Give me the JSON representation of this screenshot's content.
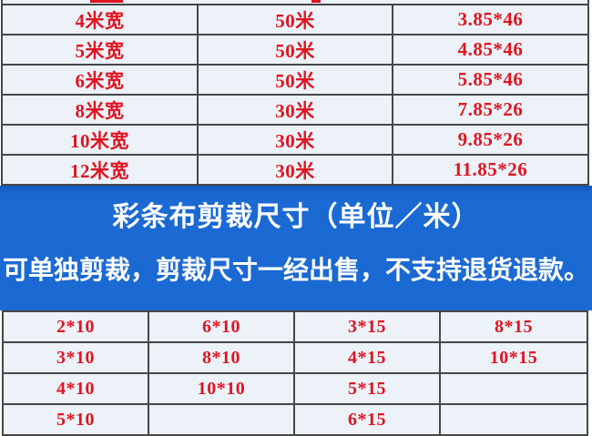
{
  "colors": {
    "cell_background": "#ecf2f8",
    "table_border": "#474747",
    "table_text_red": "#df1522",
    "banner_background": "#1b69d2",
    "banner_text": "#ffffff",
    "page_background": "#ffffff"
  },
  "roll_table": {
    "rows": [
      [
        "4米宽",
        "50米",
        "3.85*46"
      ],
      [
        "5米宽",
        "50米",
        "4.85*46"
      ],
      [
        "6米宽",
        "50米",
        "5.85*46"
      ],
      [
        "8米宽",
        "30米",
        "7.85*26"
      ],
      [
        "10米宽",
        "30米",
        "9.85*26"
      ],
      [
        "12米宽",
        "30米",
        "11.85*26"
      ]
    ]
  },
  "banner": {
    "title": "彩条布剪裁尺寸（单位／米）",
    "subtitle": "可单独剪裁，剪裁尺寸一经出售，不支持退货退款。"
  },
  "cut_table": {
    "rows": [
      [
        "2*10",
        "6*10",
        "3*15",
        "8*15"
      ],
      [
        "3*10",
        "8*10",
        "4*15",
        "10*15"
      ],
      [
        "4*10",
        "10*10",
        "5*15",
        ""
      ],
      [
        "5*10",
        "",
        "6*15",
        ""
      ]
    ]
  }
}
